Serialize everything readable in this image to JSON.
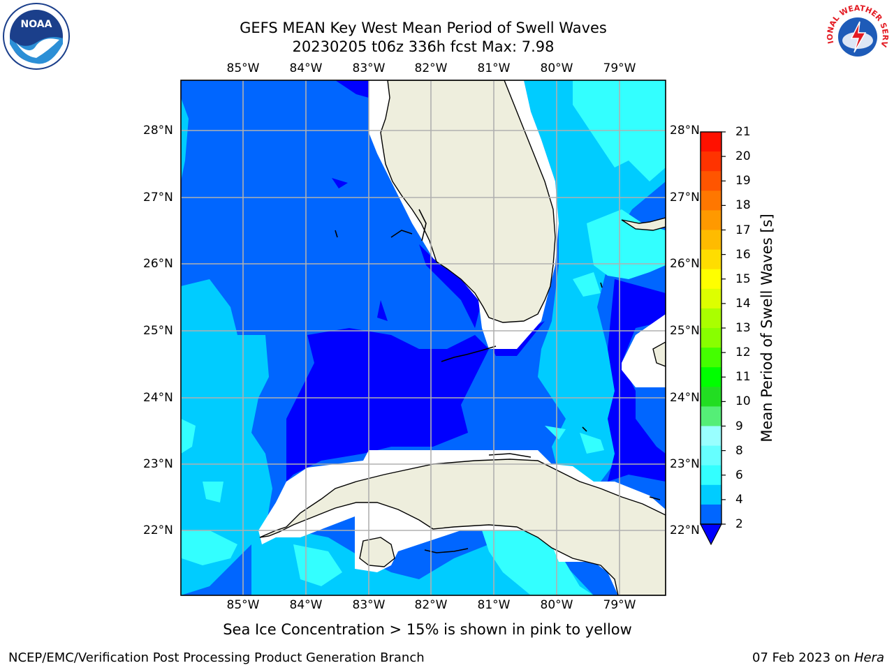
{
  "header": {
    "title_line1": "GEFS MEAN Key West Mean Period of Swell Waves",
    "title_line2": "20230205 t06z 336h fcst   Max: 7.98"
  },
  "map": {
    "lon_labels": [
      "85°W",
      "84°W",
      "83°W",
      "82°W",
      "81°W",
      "80°W",
      "79°W"
    ],
    "lat_labels": [
      "28°N",
      "27°N",
      "26°N",
      "25°N",
      "24°N",
      "23°N",
      "22°N"
    ],
    "colors": {
      "land": "#eeeedd",
      "coast": "#000000",
      "grid": "#b0b0b0",
      "nodata": "#ffffff"
    }
  },
  "colorbar": {
    "label": "Mean Period of Swell Waves [s]",
    "ticks": [
      "2",
      "4",
      "6",
      "8",
      "9",
      "10",
      "11",
      "12",
      "13",
      "14",
      "15",
      "16",
      "17",
      "18",
      "19",
      "20",
      "21"
    ],
    "under_color": "#0000ff",
    "colors": [
      "#0066ff",
      "#00ccff",
      "#33ffff",
      "#66ffff",
      "#99ffff",
      "#55ee77",
      "#22dd22",
      "#00ff00",
      "#44ff00",
      "#88ff00",
      "#aaff00",
      "#ddff00",
      "#ffff00",
      "#ffdd00",
      "#ffbb00",
      "#ff9900",
      "#ff7700",
      "#ff5500",
      "#ff3300",
      "#ff1100"
    ]
  },
  "footer": {
    "note": "Sea Ice Concentration > 15% is shown in pink to yellow",
    "credit": "NCEP/EMC/Verification Post Processing Product Generation Branch",
    "date": "07 Feb 2023 on",
    "host": "Hera"
  },
  "logos": {
    "noaa_text": "NOAA",
    "nws_text": "NATIONAL WEATHER SERVICE"
  }
}
